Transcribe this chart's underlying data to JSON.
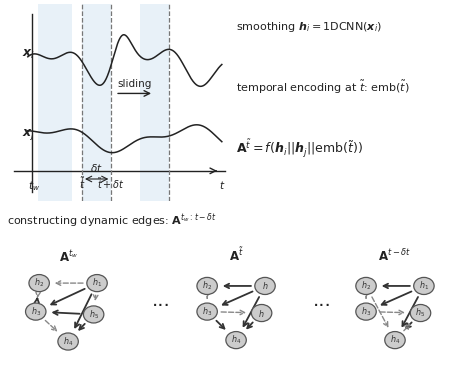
{
  "bg_color": "#ffffff",
  "ts_color": "#222222",
  "highlight_color": "#cce0f0",
  "node_fill": "#cccccc",
  "node_edge": "#555555",
  "text_color": "#222222",
  "solid_color": "#333333",
  "dashed_color": "#888888"
}
